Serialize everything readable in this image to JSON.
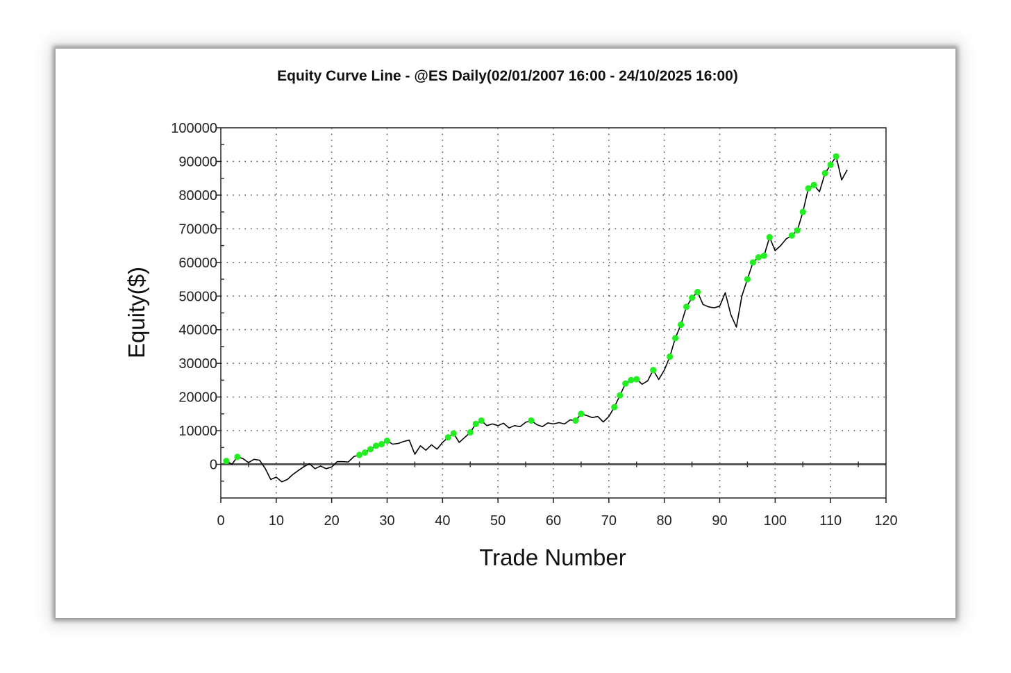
{
  "chart_data": {
    "type": "line",
    "title": "Equity Curve Line - @ES Daily(02/01/2007 16:00 - 24/10/2025 16:00)",
    "xlabel": "Trade Number",
    "ylabel": "Equity($)",
    "xlim": [
      0,
      120
    ],
    "ylim": [
      -10000,
      100000
    ],
    "x_ticks": [
      0,
      10,
      20,
      30,
      40,
      50,
      60,
      70,
      80,
      90,
      100,
      110,
      120
    ],
    "y_ticks": [
      0,
      10000,
      20000,
      30000,
      40000,
      50000,
      60000,
      70000,
      80000,
      90000,
      100000
    ],
    "grid": true,
    "colors": {
      "line": "#000000",
      "marker": "#22ee22",
      "grid": "#555555",
      "zero_line": "#555555"
    },
    "series": [
      {
        "values": [
          [
            1,
            1000
          ],
          [
            2,
            0
          ],
          [
            3,
            2200
          ],
          [
            4,
            1700
          ],
          [
            5,
            500
          ],
          [
            6,
            1500
          ],
          [
            7,
            1200
          ],
          [
            8,
            -1200
          ],
          [
            9,
            -4500
          ],
          [
            10,
            -3800
          ],
          [
            11,
            -5200
          ],
          [
            12,
            -4500
          ],
          [
            13,
            -3000
          ],
          [
            14,
            -1800
          ],
          [
            15,
            -700
          ],
          [
            16,
            200
          ],
          [
            17,
            -1300
          ],
          [
            18,
            -500
          ],
          [
            19,
            -1300
          ],
          [
            20,
            -800
          ],
          [
            21,
            800
          ],
          [
            22,
            800
          ],
          [
            23,
            700
          ],
          [
            24,
            2300
          ],
          [
            25,
            2800
          ],
          [
            26,
            3500
          ],
          [
            27,
            4500
          ],
          [
            28,
            5500
          ],
          [
            29,
            6000
          ],
          [
            30,
            7000
          ],
          [
            31,
            6000
          ],
          [
            32,
            6200
          ],
          [
            33,
            6800
          ],
          [
            34,
            7200
          ],
          [
            35,
            3000
          ],
          [
            36,
            5500
          ],
          [
            37,
            4200
          ],
          [
            38,
            5800
          ],
          [
            39,
            4500
          ],
          [
            40,
            6500
          ],
          [
            41,
            8000
          ],
          [
            42,
            9200
          ],
          [
            43,
            6500
          ],
          [
            44,
            8000
          ],
          [
            45,
            9500
          ],
          [
            46,
            12000
          ],
          [
            47,
            13000
          ],
          [
            48,
            11500
          ],
          [
            49,
            12000
          ],
          [
            50,
            11500
          ],
          [
            51,
            12200
          ],
          [
            52,
            10800
          ],
          [
            53,
            11500
          ],
          [
            54,
            11200
          ],
          [
            55,
            12500
          ],
          [
            56,
            13000
          ],
          [
            57,
            11800
          ],
          [
            58,
            11200
          ],
          [
            59,
            12300
          ],
          [
            60,
            12000
          ],
          [
            61,
            12400
          ],
          [
            62,
            12000
          ],
          [
            63,
            13200
          ],
          [
            64,
            13000
          ],
          [
            65,
            15000
          ],
          [
            66,
            14500
          ],
          [
            67,
            13900
          ],
          [
            68,
            14200
          ],
          [
            69,
            12600
          ],
          [
            70,
            14200
          ],
          [
            71,
            17000
          ],
          [
            72,
            20500
          ],
          [
            73,
            24000
          ],
          [
            74,
            25000
          ],
          [
            75,
            25300
          ],
          [
            76,
            23800
          ],
          [
            77,
            24800
          ],
          [
            78,
            28000
          ],
          [
            79,
            25200
          ],
          [
            80,
            28000
          ],
          [
            81,
            32000
          ],
          [
            82,
            37500
          ],
          [
            83,
            41500
          ],
          [
            84,
            46800
          ],
          [
            85,
            49500
          ],
          [
            86,
            51200
          ],
          [
            87,
            47500
          ],
          [
            88,
            46800
          ],
          [
            89,
            46500
          ],
          [
            90,
            47000
          ],
          [
            91,
            51000
          ],
          [
            92,
            44500
          ],
          [
            93,
            40800
          ],
          [
            94,
            50000
          ],
          [
            95,
            55000
          ],
          [
            96,
            60000
          ],
          [
            97,
            61500
          ],
          [
            98,
            62000
          ],
          [
            99,
            67500
          ],
          [
            100,
            63500
          ],
          [
            101,
            65000
          ],
          [
            102,
            67000
          ],
          [
            103,
            68000
          ],
          [
            104,
            69500
          ],
          [
            105,
            75000
          ],
          [
            106,
            82000
          ],
          [
            107,
            83000
          ],
          [
            108,
            81000
          ],
          [
            109,
            86500
          ],
          [
            110,
            89000
          ],
          [
            111,
            91500
          ],
          [
            112,
            84500
          ],
          [
            113,
            87500
          ]
        ],
        "markers_at": [
          1,
          3,
          25,
          26,
          27,
          28,
          29,
          30,
          41,
          42,
          45,
          46,
          47,
          56,
          64,
          65,
          71,
          72,
          73,
          74,
          75,
          78,
          81,
          82,
          83,
          84,
          85,
          86,
          95,
          96,
          97,
          98,
          99,
          103,
          104,
          105,
          106,
          107,
          109,
          110,
          111
        ]
      }
    ]
  }
}
